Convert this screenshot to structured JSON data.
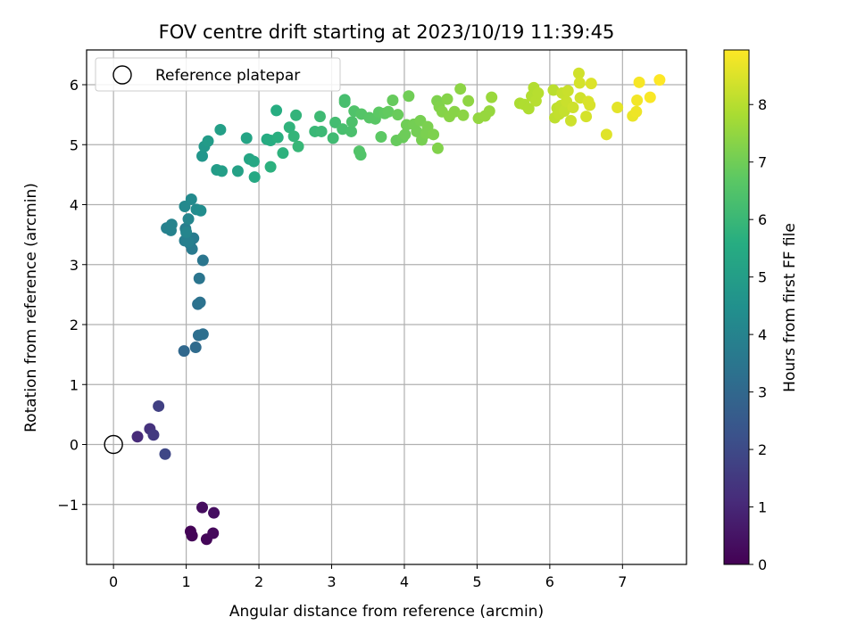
{
  "chart_data": {
    "type": "scatter",
    "title": "FOV centre drift starting at 2023/10/19 11:39:45",
    "xlabel": "Angular distance from reference (arcmin)",
    "ylabel": "Rotation from reference (arcmin)",
    "xlim": [
      -0.37,
      7.88
    ],
    "ylim": [
      -2.0,
      6.58
    ],
    "xticks": [
      0,
      1,
      2,
      3,
      4,
      5,
      6,
      7
    ],
    "yticks": [
      -1,
      0,
      1,
      2,
      3,
      4,
      5,
      6
    ],
    "xtick_labels": [
      "0",
      "1",
      "2",
      "3",
      "4",
      "5",
      "6",
      "7"
    ],
    "ytick_labels": [
      "−1",
      "0",
      "1",
      "2",
      "3",
      "4",
      "5",
      "6"
    ],
    "grid": true,
    "colormap": "viridis",
    "colorbar": {
      "label": "Hours from first FF file",
      "range": [
        0,
        8.95
      ],
      "ticks": [
        0,
        1,
        2,
        3,
        4,
        5,
        6,
        7,
        8
      ],
      "tick_labels": [
        "0",
        "1",
        "2",
        "3",
        "4",
        "5",
        "6",
        "7",
        "8"
      ]
    },
    "legend": {
      "placement": "top-left",
      "entries": [
        {
          "label": "Reference platepar",
          "marker": "open-circle",
          "color": "#000000"
        }
      ]
    },
    "reference_point": {
      "x": 0,
      "y": 0
    },
    "series": [
      {
        "points": [
          [
            1.06,
            -1.45,
            0.05
          ],
          [
            1.08,
            -1.52,
            0.1
          ],
          [
            1.28,
            -1.58,
            0.15
          ],
          [
            1.37,
            -1.48,
            0.2
          ],
          [
            1.22,
            -1.05,
            0.3
          ],
          [
            1.38,
            -1.14,
            0.35
          ],
          [
            0.33,
            0.13,
            1.1
          ],
          [
            0.5,
            0.26,
            1.3
          ],
          [
            0.55,
            0.16,
            1.5
          ],
          [
            0.62,
            0.64,
            1.7
          ],
          [
            0.71,
            -0.16,
            1.9
          ],
          [
            0.97,
            1.56,
            3.0
          ],
          [
            1.13,
            1.62,
            3.1
          ],
          [
            1.17,
            1.82,
            3.2
          ],
          [
            1.23,
            1.84,
            3.25
          ],
          [
            1.16,
            2.34,
            3.3
          ],
          [
            1.19,
            2.37,
            3.35
          ],
          [
            1.18,
            2.77,
            3.45
          ],
          [
            1.23,
            3.07,
            3.5
          ],
          [
            1.05,
            3.35,
            3.6
          ],
          [
            1.08,
            3.26,
            3.65
          ],
          [
            1.1,
            3.44,
            3.7
          ],
          [
            0.98,
            3.4,
            3.75
          ],
          [
            0.99,
            3.6,
            3.8
          ],
          [
            1.03,
            3.38,
            3.85
          ],
          [
            0.73,
            3.61,
            3.9
          ],
          [
            0.79,
            3.57,
            3.95
          ],
          [
            0.8,
            3.67,
            4.0
          ],
          [
            1.0,
            3.54,
            4.05
          ],
          [
            1.03,
            3.76,
            4.1
          ],
          [
            0.98,
            3.97,
            4.2
          ],
          [
            1.07,
            4.09,
            4.25
          ],
          [
            1.14,
            3.92,
            4.3
          ],
          [
            1.2,
            3.9,
            4.35
          ],
          [
            1.22,
            4.81,
            4.7
          ],
          [
            1.25,
            4.97,
            4.8
          ],
          [
            1.3,
            5.06,
            4.9
          ],
          [
            1.42,
            4.58,
            4.95
          ],
          [
            1.49,
            4.56,
            5.0
          ],
          [
            1.47,
            5.25,
            5.05
          ],
          [
            1.71,
            4.56,
            5.15
          ],
          [
            1.83,
            5.11,
            5.25
          ],
          [
            1.87,
            4.76,
            5.3
          ],
          [
            1.93,
            4.72,
            5.35
          ],
          [
            1.94,
            4.46,
            5.4
          ],
          [
            2.11,
            5.09,
            5.5
          ],
          [
            2.16,
            5.07,
            5.55
          ],
          [
            2.24,
            5.57,
            5.6
          ],
          [
            2.26,
            5.12,
            5.65
          ],
          [
            2.16,
            4.63,
            5.7
          ],
          [
            2.33,
            4.86,
            5.75
          ],
          [
            2.42,
            5.29,
            5.8
          ],
          [
            2.51,
            5.49,
            5.85
          ],
          [
            2.48,
            5.14,
            5.9
          ],
          [
            2.54,
            4.97,
            5.95
          ],
          [
            2.77,
            5.22,
            6.0
          ],
          [
            2.86,
            5.22,
            6.05
          ],
          [
            2.84,
            5.47,
            6.1
          ],
          [
            3.02,
            5.11,
            6.15
          ],
          [
            3.05,
            5.37,
            6.2
          ],
          [
            3.18,
            5.75,
            6.25
          ],
          [
            3.18,
            5.71,
            6.3
          ],
          [
            3.15,
            5.26,
            6.3
          ],
          [
            3.27,
            5.22,
            6.35
          ],
          [
            3.28,
            5.38,
            6.4
          ],
          [
            3.31,
            5.56,
            6.45
          ],
          [
            3.38,
            4.89,
            6.5
          ],
          [
            3.4,
            4.83,
            6.5
          ],
          [
            3.41,
            5.51,
            6.55
          ],
          [
            3.52,
            5.45,
            6.6
          ],
          [
            3.6,
            5.43,
            6.65
          ],
          [
            3.65,
            5.54,
            6.7
          ],
          [
            3.68,
            5.13,
            6.7
          ],
          [
            3.73,
            5.52,
            6.75
          ],
          [
            3.78,
            5.55,
            6.8
          ],
          [
            3.84,
            5.74,
            6.85
          ],
          [
            3.89,
            5.07,
            6.85
          ],
          [
            3.91,
            5.5,
            6.9
          ],
          [
            3.98,
            5.12,
            6.9
          ],
          [
            4.01,
            5.17,
            6.95
          ],
          [
            4.03,
            5.33,
            7.0
          ],
          [
            4.06,
            5.81,
            7.0
          ],
          [
            4.13,
            5.34,
            7.05
          ],
          [
            4.17,
            5.22,
            7.05
          ],
          [
            4.22,
            5.4,
            7.1
          ],
          [
            4.24,
            5.08,
            7.1
          ],
          [
            4.3,
            5.19,
            7.15
          ],
          [
            4.32,
            5.3,
            7.15
          ],
          [
            4.4,
            5.17,
            7.2
          ],
          [
            4.45,
            5.73,
            7.2
          ],
          [
            4.46,
            4.94,
            7.25
          ],
          [
            4.48,
            5.63,
            7.25
          ],
          [
            4.52,
            5.55,
            7.3
          ],
          [
            4.59,
            5.76,
            7.3
          ],
          [
            4.62,
            5.47,
            7.35
          ],
          [
            4.69,
            5.55,
            7.35
          ],
          [
            4.77,
            5.93,
            7.4
          ],
          [
            4.81,
            5.49,
            7.4
          ],
          [
            4.88,
            5.73,
            7.45
          ],
          [
            5.02,
            5.44,
            7.5
          ],
          [
            5.11,
            5.48,
            7.55
          ],
          [
            5.17,
            5.56,
            7.55
          ],
          [
            5.2,
            5.79,
            7.6
          ],
          [
            5.59,
            5.69,
            7.85
          ],
          [
            5.65,
            5.67,
            7.9
          ],
          [
            5.71,
            5.6,
            7.9
          ],
          [
            5.75,
            5.81,
            7.95
          ],
          [
            5.78,
            5.95,
            7.95
          ],
          [
            5.81,
            5.73,
            8.0
          ],
          [
            5.84,
            5.86,
            8.0
          ],
          [
            6.05,
            5.91,
            8.05
          ],
          [
            6.07,
            5.45,
            8.1
          ],
          [
            6.1,
            5.61,
            8.1
          ],
          [
            6.13,
            5.51,
            8.15
          ],
          [
            6.15,
            5.65,
            8.15
          ],
          [
            6.17,
            5.86,
            8.2
          ],
          [
            6.2,
            5.56,
            8.2
          ],
          [
            6.23,
            5.72,
            8.25
          ],
          [
            6.25,
            5.9,
            8.25
          ],
          [
            6.29,
            5.4,
            8.3
          ],
          [
            6.32,
            5.62,
            8.3
          ],
          [
            6.4,
            6.19,
            8.35
          ],
          [
            6.42,
            5.78,
            8.35
          ],
          [
            6.41,
            6.03,
            8.4
          ],
          [
            6.5,
            5.47,
            8.4
          ],
          [
            6.53,
            5.72,
            8.45
          ],
          [
            6.55,
            5.66,
            8.45
          ],
          [
            6.57,
            6.02,
            8.5
          ],
          [
            6.78,
            5.17,
            8.55
          ],
          [
            6.93,
            5.62,
            8.6
          ],
          [
            7.14,
            5.48,
            8.7
          ],
          [
            7.19,
            5.55,
            8.75
          ],
          [
            7.2,
            5.74,
            8.8
          ],
          [
            7.23,
            6.04,
            8.85
          ],
          [
            7.38,
            5.79,
            8.9
          ],
          [
            7.51,
            6.08,
            8.95
          ]
        ]
      }
    ]
  }
}
